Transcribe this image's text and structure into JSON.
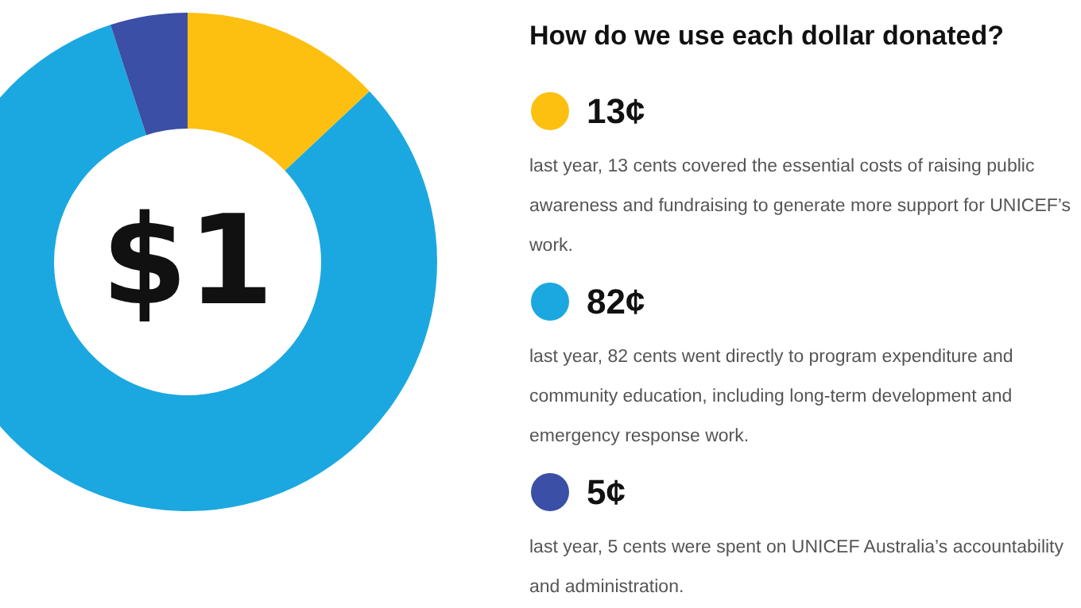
{
  "chart_data": {
    "type": "donut",
    "title": "How do we use each dollar donated?",
    "categories": [
      "13¢",
      "82¢",
      "5¢"
    ],
    "values": [
      13,
      82,
      5
    ],
    "colors": [
      "#fdc010",
      "#1ba8e0",
      "#3a4fa5"
    ],
    "legend": "right",
    "annotations": [
      "$1",
      "last year, 13 cents covered the essential costs of raising public awareness and fundraising to generate more support for UNICEF’s work.",
      "last year, 82 cents went directly to program expenditure and community education, including long-term development and emergency response work.",
      "last year, 5 cents were spent on UNICEF Australia’s accountability and administration."
    ]
  }
}
